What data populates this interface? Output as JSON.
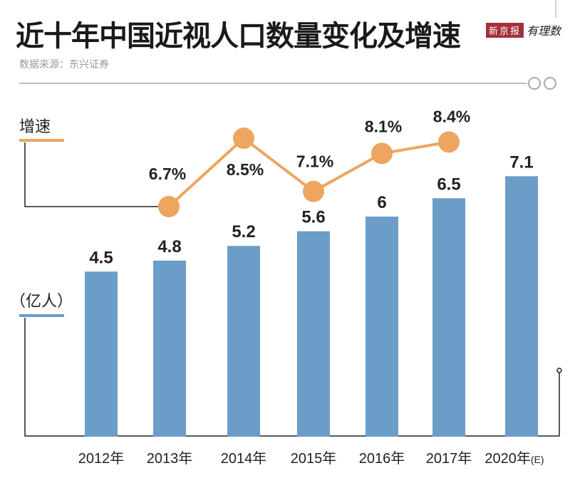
{
  "header": {
    "title": "近十年中国近视人口数量变化及增速",
    "source": "数据来源：东兴证券",
    "logo_text": "新京报",
    "logo_script": "有理数"
  },
  "chart_data": {
    "type": "bar+line",
    "title": "近十年中国近视人口数量变化及增速",
    "categories": [
      "2012年",
      "2013年",
      "2014年",
      "2015年",
      "2016年",
      "2017年",
      "2020年"
    ],
    "category_suffix": [
      "",
      "",
      "",
      "",
      "",
      "",
      "(E)"
    ],
    "series": [
      {
        "name": "（亿人）",
        "type": "bar",
        "color": "#6b9dc8",
        "values": [
          4.5,
          4.8,
          5.2,
          5.6,
          6,
          6.5,
          7.1
        ],
        "labels": [
          "4.5",
          "4.8",
          "5.2",
          "5.6",
          "6",
          "6.5",
          "7.1"
        ]
      },
      {
        "name": "增速",
        "type": "line",
        "color": "#eda55f",
        "values": [
          null,
          6.7,
          8.5,
          7.1,
          8.1,
          8.4,
          null
        ],
        "labels": [
          "",
          "6.7%",
          "8.5%",
          "7.1%",
          "8.1%",
          "8.4%",
          ""
        ]
      }
    ],
    "legend": {
      "line_label": "增速",
      "bar_label": "（亿人）"
    },
    "grid": false
  }
}
